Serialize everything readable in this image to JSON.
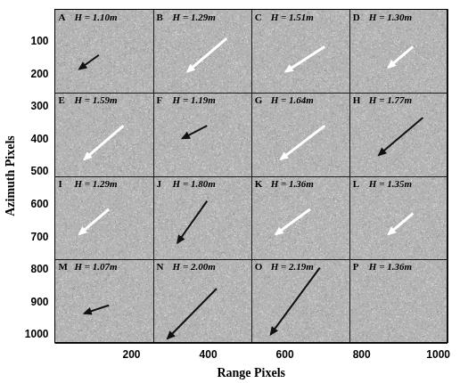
{
  "chart_data": {
    "type": "scatter",
    "xlabel": "Range Pixels",
    "ylabel": "Azimuth Pixels",
    "xlim": [
      0,
      1024
    ],
    "ylim": [
      1024,
      0
    ],
    "xticks": [
      200,
      400,
      600,
      800,
      1000
    ],
    "yticks": [
      100,
      200,
      300,
      400,
      500,
      600,
      700,
      800,
      900,
      1000
    ],
    "grid": false,
    "panel_edges_x": [
      0,
      256,
      512,
      768,
      1024
    ],
    "panel_edges_y": [
      0,
      256,
      512,
      768,
      1024
    ],
    "panels": [
      {
        "letter": "A",
        "text": "H = 1.10m",
        "arrow": {
          "x": [
            115,
            64
          ],
          "y": [
            141,
            184
          ]
        },
        "color": "#111111"
      },
      {
        "letter": "B",
        "text": "H = 1.29m",
        "arrow": {
          "x": [
            448,
            346
          ],
          "y": [
            90,
            192
          ]
        },
        "color": "#ffffff"
      },
      {
        "letter": "C",
        "text": "H = 1.51m",
        "arrow": {
          "x": [
            704,
            602
          ],
          "y": [
            115,
            192
          ]
        },
        "color": "#ffffff"
      },
      {
        "letter": "D",
        "text": "H = 1.30m",
        "arrow": {
          "x": [
            934,
            870
          ],
          "y": [
            115,
            179
          ]
        },
        "color": "#ffffff"
      },
      {
        "letter": "E",
        "text": "H = 1.59m",
        "arrow": {
          "x": [
            179,
            77
          ],
          "y": [
            358,
            461
          ]
        },
        "color": "#ffffff"
      },
      {
        "letter": "F",
        "text": "H = 1.19m",
        "arrow": {
          "x": [
            397,
            333
          ],
          "y": [
            358,
            397
          ]
        },
        "color": "#111111"
      },
      {
        "letter": "G",
        "text": "H = 1.64m",
        "arrow": {
          "x": [
            704,
            589
          ],
          "y": [
            358,
            461
          ]
        },
        "color": "#ffffff"
      },
      {
        "letter": "H",
        "text": "H = 1.77m",
        "arrow": {
          "x": [
            960,
            845
          ],
          "y": [
            333,
            448
          ]
        },
        "color": "#111111"
      },
      {
        "letter": "I",
        "text": "H = 1.29m",
        "arrow": {
          "x": [
            141,
            64
          ],
          "y": [
            614,
            691
          ]
        },
        "color": "#ffffff"
      },
      {
        "letter": "J",
        "text": "H = 1.80m",
        "arrow": {
          "x": [
            397,
            320
          ],
          "y": [
            589,
            717
          ]
        },
        "color": "#111111"
      },
      {
        "letter": "K",
        "text": "H = 1.36m",
        "arrow": {
          "x": [
            666,
            576
          ],
          "y": [
            614,
            691
          ]
        },
        "color": "#ffffff"
      },
      {
        "letter": "L",
        "text": "H = 1.35m",
        "arrow": {
          "x": [
            934,
            870
          ],
          "y": [
            627,
            691
          ]
        },
        "color": "#ffffff"
      },
      {
        "letter": "M",
        "text": "H = 1.07m",
        "arrow": {
          "x": [
            141,
            77
          ],
          "y": [
            909,
            934
          ]
        },
        "color": "#111111"
      },
      {
        "letter": "N",
        "text": "H = 2.00m",
        "arrow": {
          "x": [
            422,
            294
          ],
          "y": [
            858,
            1011
          ]
        },
        "color": "#111111"
      },
      {
        "letter": "O",
        "text": "H = 2.19m",
        "arrow": {
          "x": [
            691,
            563
          ],
          "y": [
            794,
            998
          ]
        },
        "color": "#111111"
      },
      {
        "letter": "P",
        "text": "H = 1.36m"
      }
    ]
  }
}
